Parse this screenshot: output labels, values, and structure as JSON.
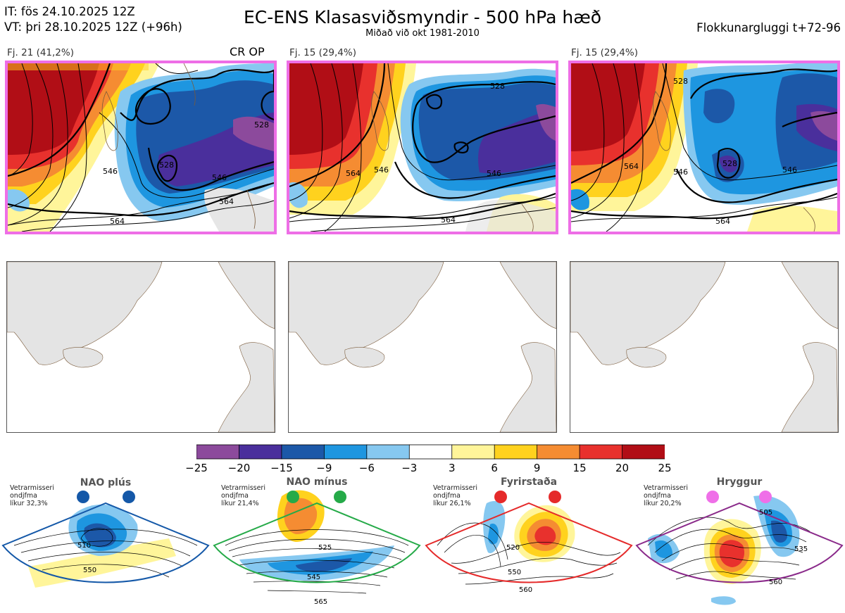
{
  "header": {
    "it": "IT: fös 24.10.2025 12Z",
    "vt": "VT: þri 28.10.2025 12Z  (+96h)",
    "title": "EC-ENS Klasasviðsmyndir - 500 hPa hæð",
    "subtitle": "Miðað við okt 1981-2010",
    "window": "Flokkunargluggi t+72-96"
  },
  "panels": [
    {
      "label": "Fj. 21 (41,2%)",
      "tag": "CR OP",
      "contours": [
        "528",
        "528",
        "546",
        "546",
        "564",
        "564",
        "546"
      ]
    },
    {
      "label": "Fj. 15 (29,4%)",
      "tag": "",
      "contours": [
        "528",
        "546",
        "546",
        "564",
        "564"
      ]
    },
    {
      "label": "Fj. 15 (29,4%)",
      "tag": "",
      "contours": [
        "528",
        "528",
        "546",
        "564",
        "564",
        "546",
        "564"
      ]
    }
  ],
  "colorbar": {
    "colors": [
      "#8c4a9c",
      "#4a2f9c",
      "#1c58a8",
      "#1e96e0",
      "#86c8f0",
      "#ffffff",
      "#fff59a",
      "#ffd21e",
      "#f58c32",
      "#e8312d",
      "#b10e16"
    ],
    "ticks": [
      "−25",
      "−20",
      "−15",
      "−9",
      "−6",
      "−3",
      "3",
      "6",
      "9",
      "15",
      "20",
      "25"
    ]
  },
  "chart_data": [
    {
      "type": "heatmap",
      "title": "EC-ENS Klasasviðsmyndir - 500 hPa hæð",
      "subtitle": "Miðað við okt 1981-2010",
      "variable": "500 hPa height anomaly (dam)",
      "color_levels": [
        -25,
        -20,
        -15,
        -9,
        -6,
        -3,
        3,
        6,
        9,
        15,
        20,
        25
      ],
      "clusters": [
        {
          "name": "Fj. 21",
          "share_percent": 41.2,
          "members": "CR OP",
          "contour_labels": [
            528,
            546,
            564
          ]
        },
        {
          "name": "Fj. 15",
          "share_percent": 29.4,
          "contour_labels": [
            528,
            546,
            564
          ]
        },
        {
          "name": "Fj. 15",
          "share_percent": 29.4,
          "contour_labels": [
            528,
            546,
            564
          ]
        }
      ]
    },
    {
      "type": "heatmap",
      "title": "Regimes",
      "regimes": [
        {
          "name": "NAO plús",
          "likelihood": "32,3%",
          "contour_labels": [
            510,
            550
          ]
        },
        {
          "name": "NAO mínus",
          "likelihood": "21,4%",
          "contour_labels": [
            525,
            545,
            565
          ]
        },
        {
          "name": "Fyrirstaða",
          "likelihood": "26,1%",
          "contour_labels": [
            520,
            550,
            560
          ]
        },
        {
          "name": "Hryggur",
          "likelihood": "20,2%",
          "contour_labels": [
            505,
            535,
            560
          ]
        }
      ]
    }
  ],
  "prototypes": [
    {
      "name": "NAO plús",
      "info1": "Vetrarmisseri",
      "info2": "ondjfma",
      "info3": "líkur 32,3%",
      "dot": "#1458a8",
      "frame": "#1458a8",
      "c": [
        "510",
        "550"
      ]
    },
    {
      "name": "NAO mínus",
      "info1": "Vetrarmisseri",
      "info2": "ondjfma",
      "info3": "líkur 21,4%",
      "dot": "#25aa48",
      "frame": "#25aa48",
      "c": [
        "525",
        "545",
        "565"
      ]
    },
    {
      "name": "Fyrirstaða",
      "info1": "Vetrarmisseri",
      "info2": "ondjfma",
      "info3": "líkur 26,1%",
      "dot": "#e52a2a",
      "frame": "#e52a2a",
      "c": [
        "520",
        "550",
        "560"
      ]
    },
    {
      "name": "Hryggur",
      "info1": "Vetrarmisseri",
      "info2": "ondjfma",
      "info3": "líkur 20,2%",
      "dot": "#ef6fe8",
      "frame": "#8a2a8a",
      "c": [
        "505",
        "535",
        "560"
      ]
    }
  ]
}
